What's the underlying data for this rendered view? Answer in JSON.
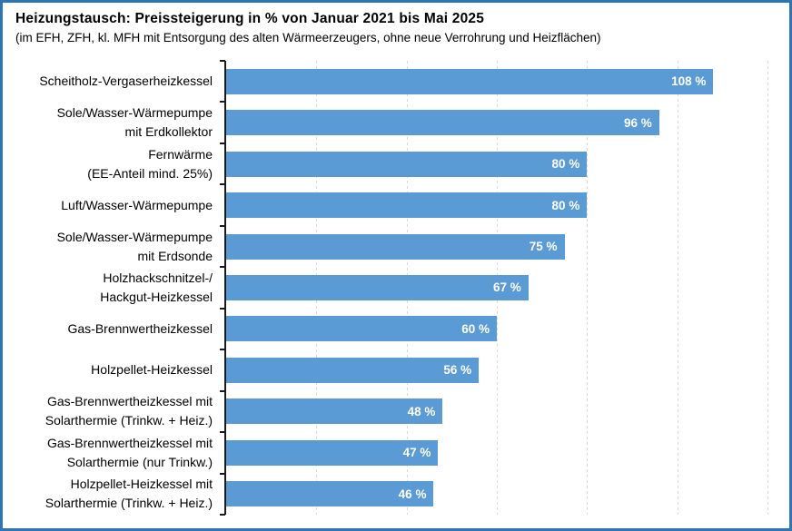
{
  "header": {
    "title": "Heizungstausch: Preissteigerung in % von Januar 2021 bis Mai 2025",
    "subtitle": "(im EFH, ZFH, kl. MFH mit Entsorgung des alten Wärmeerzeugers, ohne neue Verrohrung und Heizflächen)"
  },
  "chart_data": {
    "type": "bar",
    "orientation": "horizontal",
    "title": "Heizungstausch: Preissteigerung in % von Januar 2021 bis Mai 2025",
    "subtitle": "(im EFH, ZFH, kl. MFH mit Entsorgung des alten Wärmeerzeugers, ohne neue Verrohrung und Heizflächen)",
    "categories": [
      "Scheitholz-Vergaserheizkessel",
      "Sole/Wasser-Wärmepumpe\nmit Erdkollektor",
      "Fernwärme\n(EE-Anteil mind. 25%)",
      "Luft/Wasser-Wärmepumpe",
      "Sole/Wasser-Wärmepumpe\nmit Erdsonde",
      "Holzhackschnitzel-/\nHackgut-Heizkessel",
      "Gas-Brennwertheizkessel",
      "Holzpellet-Heizkessel",
      "Gas-Brennwertheizkessel mit\nSolarthermie (Trinkw. + Heiz.)",
      "Gas-Brennwertheizkessel mit\nSolarthermie (nur Trinkw.)",
      "Holzpellet-Heizkessel mit\nSolarthermie (Trinkw. + Heiz.)"
    ],
    "values": [
      108,
      96,
      80,
      80,
      75,
      67,
      60,
      56,
      48,
      47,
      46
    ],
    "value_labels": [
      "108 %",
      "96 %",
      "80 %",
      "80 %",
      "75 %",
      "67 %",
      "60 %",
      "56 %",
      "48 %",
      "47 %",
      "46 %"
    ],
    "xlabel": "",
    "ylabel": "",
    "xlim": [
      0,
      120
    ],
    "gridline_step": 20,
    "grid": "vertical-dashed",
    "legend": "none",
    "bar_color": "#5B9BD5",
    "value_label_color": "#FFFFFF"
  },
  "colors": {
    "frame_border": "#2E75B6",
    "gridline": "#D9D9D9",
    "axis": "#1A1A1A",
    "background": "#FFFFFF",
    "text": "#000000"
  }
}
